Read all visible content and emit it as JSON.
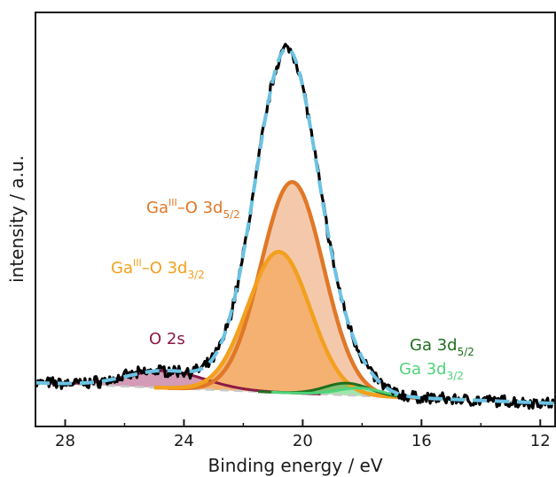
{
  "chart_data": {
    "type": "line",
    "xlabel": "Binding energy  /  eV",
    "ylabel": "intensity  /  a.u.",
    "xlim": [
      29,
      11.5
    ],
    "x_reversed": true,
    "ylim": [
      0,
      1
    ],
    "x_ticks": [
      28,
      24,
      20,
      16,
      12
    ],
    "y_ticks": [],
    "grid": false,
    "legend": "none",
    "baseline": {
      "x": [
        29,
        11.5
      ],
      "y": [
        0.06,
        0.0
      ]
    },
    "components": [
      {
        "key": "o2s",
        "label": "O 2s",
        "color": "#8a1a46",
        "fill": "#cf90ae",
        "center": 24.6,
        "amplitude": 0.05,
        "sigma": 1.3
      },
      {
        "key": "ga3d52",
        "label": "Ga 3d5/2",
        "color": "#1f6e1f",
        "fill": "#6fc26f",
        "center": 18.5,
        "amplitude": 0.035,
        "sigma": 0.75
      },
      {
        "key": "ga3d32",
        "label": "Ga 3d3/2",
        "color": "#4fd37a",
        "fill": "#a6e8b4",
        "center": 18.05,
        "amplitude": 0.022,
        "sigma": 0.75
      },
      {
        "key": "gaox52",
        "label": "GaIII–O 3d5/2",
        "color": "#e07828",
        "fill": "#f3c3a2",
        "center": 20.35,
        "amplitude": 0.615,
        "sigma": 1.05
      },
      {
        "key": "gaox32",
        "label": "GaIII–O 3d3/2",
        "color": "#f2a01e",
        "fill": "#f4ae6a",
        "center": 20.8,
        "amplitude": 0.41,
        "sigma": 1.05
      }
    ],
    "annotations": [
      {
        "key": "gaox52",
        "base": "Ga",
        "sup": "III",
        "mid": "–O 3d",
        "sub": "5/2",
        "color": "#e07828"
      },
      {
        "key": "gaox32",
        "base": "Ga",
        "sup": "III",
        "mid": "–O 3d",
        "sub": "3/2",
        "color": "#f2a01e"
      },
      {
        "key": "o2s",
        "base": "O 2s",
        "sup": "",
        "mid": "",
        "sub": "",
        "color": "#8a1a46"
      },
      {
        "key": "ga3d52",
        "base": "Ga 3d",
        "sup": "",
        "mid": "",
        "sub": "5/2",
        "color": "#1f6e1f"
      },
      {
        "key": "ga3d32",
        "base": "Ga 3d",
        "sup": "",
        "mid": "",
        "sub": "3/2",
        "color": "#4fd37a"
      }
    ],
    "series": [
      {
        "key": "measured",
        "style": "solid",
        "color": "#000000"
      },
      {
        "key": "envelope",
        "style": "dashed",
        "color": "#6cc3e3"
      }
    ]
  }
}
